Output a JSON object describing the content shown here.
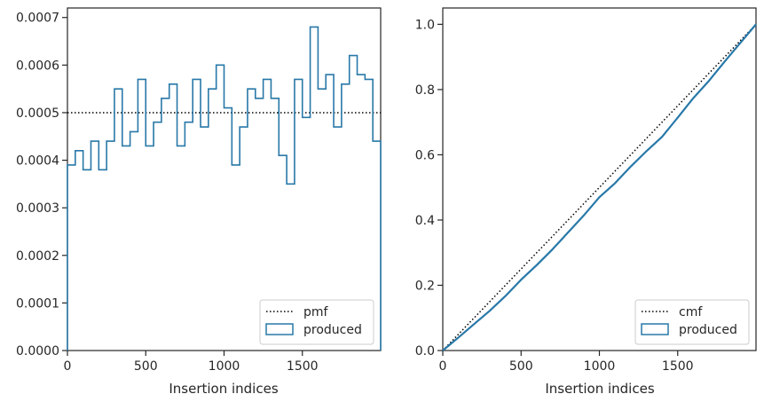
{
  "chart_data": [
    {
      "type": "step",
      "xlabel": "Insertion indices",
      "ylabel": "",
      "xlim": [
        0,
        2000
      ],
      "ylim": [
        0,
        0.00072
      ],
      "xticks": [
        0,
        500,
        1000,
        1500
      ],
      "xtick_labels": [
        "0",
        "500",
        "1000",
        "1500"
      ],
      "yticks": [
        0,
        0.0001,
        0.0002,
        0.0003,
        0.0004,
        0.0005,
        0.0006,
        0.0007
      ],
      "ytick_labels": [
        "0.0000",
        "0.0001",
        "0.0002",
        "0.0003",
        "0.0004",
        "0.0005",
        "0.0006",
        "0.0007"
      ],
      "legend_position": "lower-right",
      "bin_edges": [
        0,
        50,
        100,
        150,
        200,
        250,
        300,
        350,
        400,
        450,
        500,
        550,
        600,
        650,
        700,
        750,
        800,
        850,
        900,
        950,
        1000,
        1050,
        1100,
        1150,
        1200,
        1250,
        1300,
        1350,
        1400,
        1450,
        1500,
        1550,
        1600,
        1650,
        1700,
        1750,
        1800,
        1850,
        1900,
        1950,
        2000
      ],
      "series": [
        {
          "name": "pmf",
          "style": "dotted",
          "color": "#000000",
          "values": [
            0.0005
          ]
        },
        {
          "name": "produced",
          "style": "step",
          "color": "#2878a8",
          "values": [
            0.00039,
            0.00042,
            0.00038,
            0.00044,
            0.00038,
            0.00044,
            0.00055,
            0.00043,
            0.00046,
            0.00057,
            0.00043,
            0.00048,
            0.00053,
            0.00056,
            0.00043,
            0.00048,
            0.00057,
            0.00047,
            0.00055,
            0.0006,
            0.00051,
            0.00039,
            0.00047,
            0.00055,
            0.00053,
            0.00057,
            0.00053,
            0.00041,
            0.00035,
            0.00057,
            0.00049,
            0.00068,
            0.00055,
            0.00058,
            0.00047,
            0.00056,
            0.00062,
            0.00058,
            0.00057,
            0.00044
          ]
        }
      ]
    },
    {
      "type": "line",
      "xlabel": "Insertion indices",
      "ylabel": "",
      "xlim": [
        0,
        2000
      ],
      "ylim": [
        0,
        1.05
      ],
      "xticks": [
        0,
        500,
        1000,
        1500
      ],
      "xtick_labels": [
        "0",
        "500",
        "1000",
        "1500"
      ],
      "yticks": [
        0,
        0.2,
        0.4,
        0.6,
        0.8,
        1.0
      ],
      "ytick_labels": [
        "0.0",
        "0.2",
        "0.4",
        "0.6",
        "0.8",
        "1.0"
      ],
      "legend_position": "lower-right",
      "series": [
        {
          "name": "cmf",
          "style": "dotted",
          "color": "#000000",
          "x": [
            0,
            2000
          ],
          "values": [
            0,
            1.0
          ]
        },
        {
          "name": "produced",
          "style": "line",
          "color": "#2878a8",
          "x": [
            0,
            100,
            200,
            300,
            400,
            500,
            600,
            700,
            800,
            900,
            1000,
            1100,
            1200,
            1300,
            1400,
            1500,
            1600,
            1700,
            1800,
            1900,
            2000
          ],
          "values": [
            0,
            0.04,
            0.081,
            0.122,
            0.167,
            0.217,
            0.262,
            0.31,
            0.362,
            0.414,
            0.47,
            0.513,
            0.564,
            0.611,
            0.655,
            0.714,
            0.774,
            0.827,
            0.886,
            0.943,
            1.0
          ]
        }
      ]
    }
  ]
}
